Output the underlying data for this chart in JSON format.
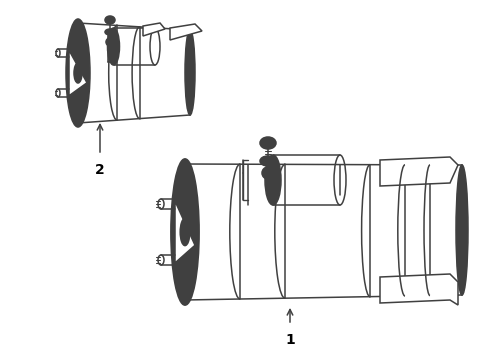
{
  "background_color": "#ffffff",
  "line_color": "#404040",
  "line_width": 1.1,
  "label_1": "1",
  "label_2": "2",
  "label_fontsize": 10,
  "label_fontweight": "bold",
  "figsize": [
    4.9,
    3.6
  ],
  "dpi": 100
}
